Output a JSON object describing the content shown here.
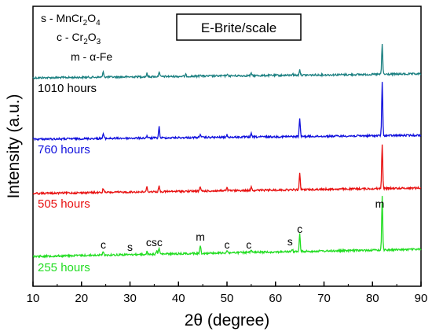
{
  "chart_data": {
    "type": "line",
    "title": "E-Brite/scale",
    "xlabel": "2θ (degree)",
    "ylabel": "Intensity (a.u.)",
    "xlim": [
      10,
      90
    ],
    "x_ticks": [
      "10",
      "20",
      "30",
      "40",
      "50",
      "60",
      "70",
      "80",
      "90"
    ],
    "y_ticks": "none",
    "grid": false,
    "legend_items": [
      {
        "key": "s",
        "text": "MnCr2O4"
      },
      {
        "key": "c",
        "text": "Cr2O3"
      },
      {
        "key": "m",
        "text": "α-Fe"
      }
    ],
    "series": [
      {
        "name": "1010 hours",
        "color": "#1a7f80",
        "baseline": [
          0.0,
          0.03
        ],
        "peaks": [
          [
            24.5,
            0.1
          ],
          [
            33.5,
            0.06
          ],
          [
            36.0,
            0.09
          ],
          [
            41.5,
            0.03
          ],
          [
            44.5,
            0.04
          ],
          [
            50.0,
            0.03
          ],
          [
            55.0,
            0.04
          ],
          [
            63.5,
            0.03
          ],
          [
            65.0,
            0.11
          ],
          [
            82.0,
            0.55
          ]
        ]
      },
      {
        "name": "760 hours",
        "color": "#1010dd",
        "baseline": [
          0.0,
          0.02
        ],
        "peaks": [
          [
            24.5,
            0.06
          ],
          [
            33.5,
            0.03
          ],
          [
            36.0,
            0.14
          ],
          [
            44.5,
            0.05
          ],
          [
            50.0,
            0.03
          ],
          [
            55.0,
            0.04
          ],
          [
            65.0,
            0.24
          ],
          [
            82.0,
            0.68
          ]
        ]
      },
      {
        "name": "505 hours",
        "color": "#e81010",
        "baseline": [
          0.0,
          0.02
        ],
        "peaks": [
          [
            24.5,
            0.06
          ],
          [
            33.5,
            0.07
          ],
          [
            36.0,
            0.08
          ],
          [
            44.5,
            0.06
          ],
          [
            50.0,
            0.04
          ],
          [
            55.0,
            0.06
          ],
          [
            65.0,
            0.22
          ],
          [
            82.0,
            0.62
          ]
        ]
      },
      {
        "name": "255 hours",
        "color": "#22dd22",
        "baseline": [
          0.0,
          0.04
        ],
        "peaks": [
          [
            24.5,
            0.06
          ],
          [
            33.5,
            0.04
          ],
          [
            35.5,
            0.06
          ],
          [
            36.0,
            0.1
          ],
          [
            44.5,
            0.12
          ],
          [
            50.0,
            0.04
          ],
          [
            55.0,
            0.04
          ],
          [
            63.5,
            0.03
          ],
          [
            65.0,
            0.28
          ],
          [
            82.0,
            0.85
          ]
        ]
      }
    ],
    "peak_labels": [
      {
        "text": "c",
        "x": 24.5
      },
      {
        "text": "s",
        "x": 30.0
      },
      {
        "text": "csc",
        "x": 35.0
      },
      {
        "text": "m",
        "x": 44.5
      },
      {
        "text": "c",
        "x": 50.0
      },
      {
        "text": "c",
        "x": 54.5
      },
      {
        "text": "s",
        "x": 63.0
      },
      {
        "text": "c",
        "x": 65.0
      },
      {
        "text": "m",
        "x": 81.5
      }
    ]
  }
}
